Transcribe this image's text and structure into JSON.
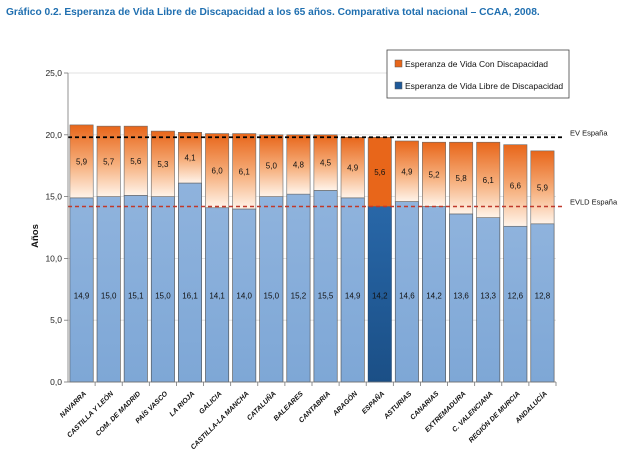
{
  "title": "Gráfico 0.2. Esperanza de Vida Libre de Discapacidad a los 65 años. Comparativa total nacional – CCAA, 2008.",
  "chart_data": {
    "type": "bar",
    "stacked": true,
    "ylabel": "Años",
    "ylim": [
      0,
      25
    ],
    "yticks": [
      "0,0",
      "5,0",
      "10,0",
      "15,0",
      "20,0",
      "25,0"
    ],
    "categories": [
      "NAVARRA",
      "CASTILLA Y LEÓN",
      "COM. DE MADRID",
      "PAÍS VASCO",
      "LA RIOJA",
      "GALICIA",
      "CASTILLA-LA MANCHA",
      "CATALUÑA",
      "BALEARES",
      "CANTABRIA",
      "ARAGÓN",
      "ESPAÑA",
      "ASTURIAS",
      "CANARIAS",
      "EXTREMADURA",
      "C. VALENCIANA",
      "REGIÓN DE MURCIA",
      "ANDALUCÍA"
    ],
    "highlight_category": "ESPAÑA",
    "series": [
      {
        "name": "Esperanza de Vida Libre de Discapacidad",
        "values": [
          14.9,
          15.0,
          15.1,
          15.0,
          16.1,
          14.1,
          14.0,
          15.0,
          15.2,
          15.5,
          14.9,
          14.2,
          14.6,
          14.2,
          13.6,
          13.3,
          12.6,
          12.8
        ],
        "labels": [
          "14,9",
          "15,0",
          "15,1",
          "15,0",
          "16,1",
          "14,1",
          "14,0",
          "15,0",
          "15,2",
          "15,5",
          "14,9",
          "14,2",
          "14,6",
          "14,2",
          "13,6",
          "13,3",
          "12,6",
          "12,8"
        ]
      },
      {
        "name": "Esperanza de Vida Con Discapacidad",
        "values": [
          5.9,
          5.7,
          5.6,
          5.3,
          4.1,
          6.0,
          6.1,
          5.0,
          4.8,
          4.5,
          4.9,
          5.6,
          4.9,
          5.2,
          5.8,
          6.1,
          6.6,
          5.9
        ],
        "labels": [
          "5,9",
          "5,7",
          "5,6",
          "5,3",
          "4,1",
          "6,0",
          "6,1",
          "5,0",
          "4,8",
          "4,5",
          "4,9",
          "5,6",
          "4,9",
          "5,2",
          "5,8",
          "6,1",
          "6,6",
          "5,9"
        ]
      }
    ],
    "reference_lines": [
      {
        "label": "EV España",
        "value": 19.8,
        "color": "#000000"
      },
      {
        "label": "EVLD España",
        "value": 14.2,
        "color": "#c0392b"
      }
    ],
    "legend": [
      "Esperanza de Vida Con Discapacidad",
      "Esperanza de Vida Libre de Discapacidad"
    ],
    "legend_position": "top-right"
  }
}
